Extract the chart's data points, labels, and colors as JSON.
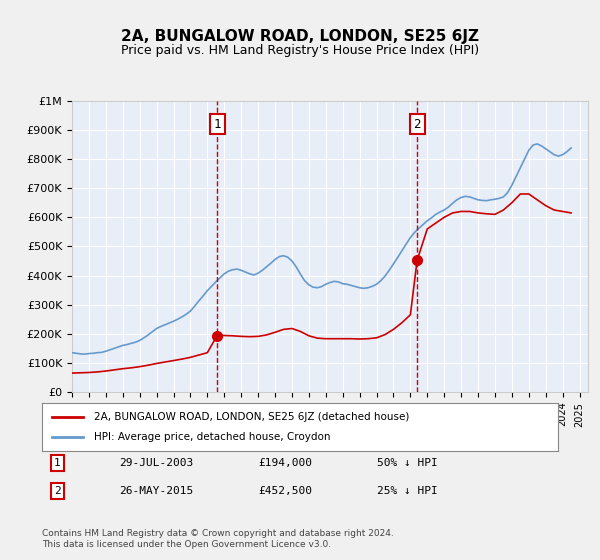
{
  "title": "2A, BUNGALOW ROAD, LONDON, SE25 6JZ",
  "subtitle": "Price paid vs. HM Land Registry's House Price Index (HPI)",
  "legend_line1": "2A, BUNGALOW ROAD, LONDON, SE25 6JZ (detached house)",
  "legend_line2": "HPI: Average price, detached house, Croydon",
  "annotation1_label": "1",
  "annotation1_date": "29-JUL-2003",
  "annotation1_price": "£194,000",
  "annotation1_pct": "50% ↓ HPI",
  "annotation1_year": 2003.58,
  "annotation1_value": 194000,
  "annotation2_label": "2",
  "annotation2_date": "26-MAY-2015",
  "annotation2_price": "£452,500",
  "annotation2_pct": "25% ↓ HPI",
  "annotation2_year": 2015.4,
  "annotation2_value": 452500,
  "xmin": 1995,
  "xmax": 2025.5,
  "ymin": 0,
  "ymax": 1000000,
  "yticks": [
    0,
    100000,
    200000,
    300000,
    400000,
    500000,
    600000,
    700000,
    800000,
    900000,
    1000000
  ],
  "ytick_labels": [
    "£0",
    "£100K",
    "£200K",
    "£300K",
    "£400K",
    "£500K",
    "£600K",
    "£700K",
    "£800K",
    "£900K",
    "£1M"
  ],
  "line_color_red": "#cc0000",
  "line_color_blue": "#6699cc",
  "vline_color": "#cc0000",
  "dot_color": "#cc0000",
  "background_color": "#e8eef8",
  "plot_bg": "#ffffff",
  "footer_text": "Contains HM Land Registry data © Crown copyright and database right 2024.\nThis data is licensed under the Open Government Licence v3.0.",
  "hpi_years": [
    1995.0,
    1995.25,
    1995.5,
    1995.75,
    1996.0,
    1996.25,
    1996.5,
    1996.75,
    1997.0,
    1997.25,
    1997.5,
    1997.75,
    1998.0,
    1998.25,
    1998.5,
    1998.75,
    1999.0,
    1999.25,
    1999.5,
    1999.75,
    2000.0,
    2000.25,
    2000.5,
    2000.75,
    2001.0,
    2001.25,
    2001.5,
    2001.75,
    2002.0,
    2002.25,
    2002.5,
    2002.75,
    2003.0,
    2003.25,
    2003.5,
    2003.75,
    2004.0,
    2004.25,
    2004.5,
    2004.75,
    2005.0,
    2005.25,
    2005.5,
    2005.75,
    2006.0,
    2006.25,
    2006.5,
    2006.75,
    2007.0,
    2007.25,
    2007.5,
    2007.75,
    2008.0,
    2008.25,
    2008.5,
    2008.75,
    2009.0,
    2009.25,
    2009.5,
    2009.75,
    2010.0,
    2010.25,
    2010.5,
    2010.75,
    2011.0,
    2011.25,
    2011.5,
    2011.75,
    2012.0,
    2012.25,
    2012.5,
    2012.75,
    2013.0,
    2013.25,
    2013.5,
    2013.75,
    2014.0,
    2014.25,
    2014.5,
    2014.75,
    2015.0,
    2015.25,
    2015.5,
    2015.75,
    2016.0,
    2016.25,
    2016.5,
    2016.75,
    2017.0,
    2017.25,
    2017.5,
    2017.75,
    2018.0,
    2018.25,
    2018.5,
    2018.75,
    2019.0,
    2019.25,
    2019.5,
    2019.75,
    2020.0,
    2020.25,
    2020.5,
    2020.75,
    2021.0,
    2021.25,
    2021.5,
    2021.75,
    2022.0,
    2022.25,
    2022.5,
    2022.75,
    2023.0,
    2023.25,
    2023.5,
    2023.75,
    2024.0,
    2024.25,
    2024.5
  ],
  "hpi_values": [
    135000,
    133000,
    131000,
    130000,
    132000,
    133000,
    135000,
    136000,
    140000,
    145000,
    150000,
    155000,
    160000,
    163000,
    167000,
    171000,
    177000,
    186000,
    196000,
    207000,
    218000,
    225000,
    231000,
    237000,
    243000,
    250000,
    258000,
    267000,
    278000,
    295000,
    313000,
    330000,
    348000,
    363000,
    378000,
    392000,
    406000,
    415000,
    420000,
    422000,
    418000,
    412000,
    406000,
    402000,
    408000,
    418000,
    430000,
    442000,
    455000,
    465000,
    468000,
    463000,
    450000,
    430000,
    405000,
    382000,
    368000,
    360000,
    358000,
    362000,
    370000,
    376000,
    380000,
    378000,
    372000,
    370000,
    366000,
    362000,
    358000,
    356000,
    358000,
    363000,
    370000,
    382000,
    398000,
    418000,
    440000,
    462000,
    485000,
    508000,
    530000,
    548000,
    562000,
    575000,
    588000,
    598000,
    610000,
    618000,
    625000,
    635000,
    648000,
    660000,
    668000,
    672000,
    670000,
    665000,
    660000,
    658000,
    657000,
    660000,
    662000,
    665000,
    670000,
    685000,
    710000,
    740000,
    770000,
    800000,
    830000,
    848000,
    852000,
    845000,
    835000,
    825000,
    815000,
    810000,
    815000,
    825000,
    838000
  ],
  "red_years": [
    1995.0,
    1995.5,
    1996.0,
    1996.5,
    1997.0,
    1997.5,
    1998.0,
    1998.5,
    1999.0,
    1999.5,
    2000.0,
    2000.5,
    2001.0,
    2001.5,
    2002.0,
    2002.5,
    2003.0,
    2003.58,
    2004.0,
    2004.5,
    2005.0,
    2005.5,
    2006.0,
    2006.5,
    2007.0,
    2007.5,
    2008.0,
    2008.5,
    2009.0,
    2009.5,
    2010.0,
    2010.5,
    2011.0,
    2011.5,
    2012.0,
    2012.5,
    2013.0,
    2013.5,
    2014.0,
    2014.5,
    2015.0,
    2015.4,
    2016.0,
    2016.5,
    2017.0,
    2017.5,
    2018.0,
    2018.5,
    2019.0,
    2019.5,
    2020.0,
    2020.5,
    2021.0,
    2021.5,
    2022.0,
    2022.5,
    2023.0,
    2023.5,
    2024.0,
    2024.5
  ],
  "red_values": [
    65000,
    66000,
    67000,
    69000,
    72000,
    76000,
    80000,
    83000,
    87000,
    92000,
    98000,
    103000,
    108000,
    113000,
    119000,
    127000,
    135000,
    194000,
    194000,
    193000,
    191000,
    190000,
    191000,
    196000,
    205000,
    215000,
    218000,
    208000,
    193000,
    185000,
    183000,
    183000,
    183000,
    183000,
    182000,
    183000,
    186000,
    197000,
    215000,
    238000,
    265000,
    452500,
    560000,
    580000,
    600000,
    615000,
    620000,
    620000,
    615000,
    612000,
    610000,
    625000,
    650000,
    680000,
    680000,
    660000,
    640000,
    625000,
    620000,
    615000
  ]
}
